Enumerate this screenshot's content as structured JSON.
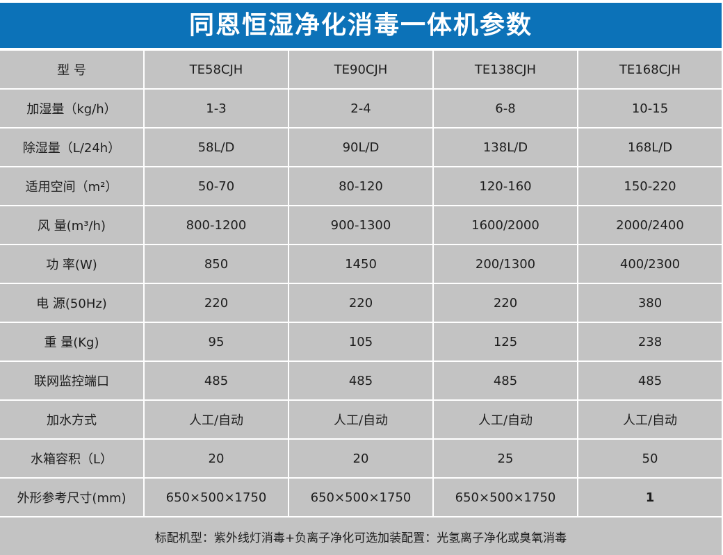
{
  "title": "同恩恒湿净化消毒一体机参数",
  "colors": {
    "banner_blue": "#0c72b8",
    "cell_gray": "#c3c3c3",
    "text_dark": "#1d1d1d",
    "title_white": "#ffffff",
    "divider_white": "#ffffff"
  },
  "chart_data": {
    "type": "table",
    "title": "同恩恒湿净化消毒一体机参数",
    "columns": [
      "型 号",
      "TE58CJH",
      "TE90CJH",
      "TE138CJH",
      "TE168CJH"
    ],
    "rows": [
      [
        "加湿量（kg/h）",
        "1-3",
        "2-4",
        "6-8",
        "10-15"
      ],
      [
        "除湿量（L/24h）",
        "58L/D",
        "90L/D",
        "138L/D",
        "168L/D"
      ],
      [
        "适用空间（m²）",
        "50-70",
        "80-120",
        "120-160",
        "150-220"
      ],
      [
        "风 量(m³/h)",
        "800-1200",
        "900-1300",
        "1600/2000",
        "2000/2400"
      ],
      [
        "功 率(W)",
        "850",
        "1450",
        "200/1300",
        "400/2300"
      ],
      [
        "电 源(50Hz)",
        "220",
        "220",
        "220",
        "380"
      ],
      [
        "重 量(Kg)",
        "95",
        "105",
        "125",
        "238"
      ],
      [
        "联网监控端口",
        "485",
        "485",
        "485",
        "485"
      ],
      [
        "加水方式",
        "人工/自动",
        "人工/自动",
        "人工/自动",
        "人工/自动"
      ],
      [
        "水箱容积（L）",
        "20",
        "20",
        "25",
        "50"
      ],
      [
        "外形参考尺寸(mm)",
        "650×500×1750",
        "650×500×1750",
        "650×500×1750",
        "1"
      ]
    ],
    "emphasis_cell": {
      "row_index": 10,
      "col_index": 4
    },
    "footnote": "标配机型：紫外线灯消毒+负离子净化可选加装配置：光氢离子净化或臭氧消毒",
    "layout": {
      "grid": "on",
      "header_position": "top-row",
      "cell_background": "#c3c3c3",
      "divider": "#ffffff"
    }
  }
}
